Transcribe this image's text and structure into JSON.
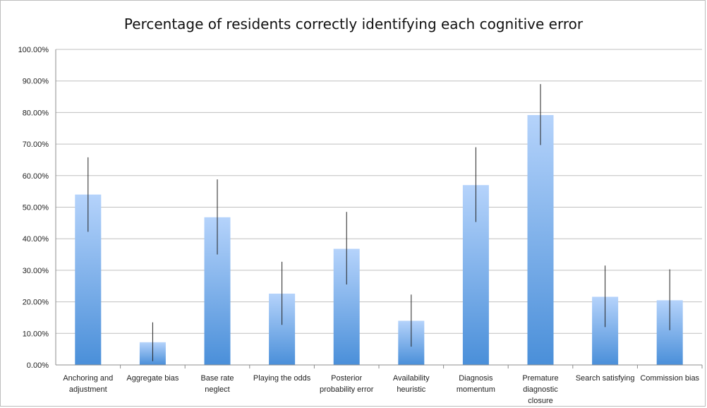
{
  "chart_data": {
    "type": "bar",
    "title": "Percentage of residents correctly identifying each cognitive error",
    "xlabel": "",
    "ylabel": "",
    "ylim": [
      0,
      100
    ],
    "yticks": [
      "0.00%",
      "10.00%",
      "20.00%",
      "30.00%",
      "40.00%",
      "50.00%",
      "60.00%",
      "70.00%",
      "80.00%",
      "90.00%",
      "100.00%"
    ],
    "grid": true,
    "legend": "none",
    "categories": [
      [
        "Anchoring and",
        "adjustment"
      ],
      [
        "Aggregate bias"
      ],
      [
        "Base rate",
        "neglect"
      ],
      [
        "Playing the odds"
      ],
      [
        "Posterior",
        "probability error"
      ],
      [
        "Availability",
        "heuristic"
      ],
      [
        "Diagnosis",
        "momentum"
      ],
      [
        "Premature",
        "diagnostic",
        "closure"
      ],
      [
        "Search satisfying"
      ],
      [
        "Commission bias"
      ]
    ],
    "values": [
      54,
      7.2,
      46.8,
      22.6,
      36.8,
      14,
      57,
      79.2,
      21.6,
      20.5
    ],
    "error_low": [
      42.2,
      1.2,
      35,
      12.7,
      25.5,
      5.8,
      45.3,
      69.7,
      12,
      11
    ],
    "error_high": [
      65.8,
      13.5,
      58.8,
      32.7,
      48.5,
      22.3,
      69,
      89,
      31.5,
      30.3
    ],
    "colors": {
      "bar_top": "#b5d3fb",
      "bar_bottom": "#4a8fd9",
      "grid": "#bfbfbf",
      "error": "#222222"
    }
  }
}
